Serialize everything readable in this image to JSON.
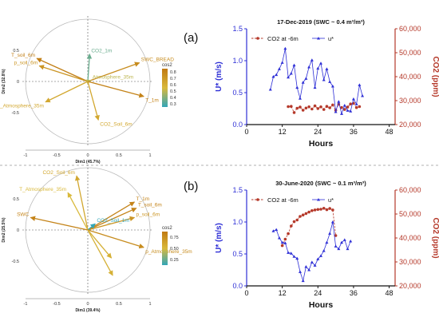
{
  "panel_labels": {
    "a": "(a)",
    "b": "(b)"
  },
  "colorbar_label": "cos2",
  "colors": {
    "co2_series": "#b5392a",
    "ustar_series": "#2e2fd6",
    "left_axis": "#2e2fd6",
    "right_axis": "#b5392a",
    "vector_high": "#c07a12",
    "vector_mid": "#d9b93b",
    "vector_low": "#32a6b8",
    "divider": "#999999"
  },
  "chart_data": [
    {
      "type": "biplot",
      "panel": "a",
      "xlabel": "Dim1 (45.7%)",
      "ylabel": "Dim2 (32.8%)",
      "xticks": [
        "-1",
        "-0.5",
        "0",
        "0.5",
        "1"
      ],
      "yticks": [
        "0.5",
        "0",
        "-0.5"
      ],
      "xlim": [
        -1.1,
        1.1
      ],
      "ylim": [
        -1.1,
        1.1
      ],
      "colorbar": {
        "label": "cos2",
        "ticks": [
          "0.8",
          "0.7",
          "0.6",
          "0.5",
          "0.4",
          "0.3"
        ]
      },
      "vectors": [
        {
          "label": "CO2_1m",
          "x": 0.03,
          "y": 0.44,
          "cos2": 0.3
        },
        {
          "label": "SWC_BREAD",
          "x": 0.83,
          "y": 0.3,
          "cos2": 0.75
        },
        {
          "label": "T_soil_6m",
          "x": -0.82,
          "y": 0.37,
          "cos2": 0.82
        },
        {
          "label": "p_soil_6m",
          "x": -0.78,
          "y": 0.25,
          "cos2": 0.7
        },
        {
          "label": "Atmosphere_35m",
          "x": 0.05,
          "y": 0.02,
          "cos2": 0.45
        },
        {
          "label": "p_Atmosphere_35m",
          "x": -0.68,
          "y": -0.33,
          "cos2": 0.6
        },
        {
          "label": "T_1m",
          "x": 0.9,
          "y": -0.24,
          "cos2": 0.8
        },
        {
          "label": "CO2_Soil_6m",
          "x": 0.17,
          "y": -0.62,
          "cos2": 0.6
        }
      ]
    },
    {
      "type": "line",
      "panel": "a",
      "title": "17-Dec-2019 (SWC ~ 0.4 m³/m³)",
      "xlabel": "Hours",
      "ylabel_left": "U* (m/s)",
      "ylabel_right": "CO2 (ppm)",
      "xlim": [
        0,
        50
      ],
      "xticks": [
        "0",
        "12",
        "24",
        "36",
        "48"
      ],
      "ylim_left": [
        0,
        1.5
      ],
      "yticks_left": [
        "0.0",
        "0.5",
        "1.0",
        "1.5"
      ],
      "ylim_right": [
        20000,
        60000
      ],
      "yticks_right": [
        "20,000",
        "30,000",
        "40,000",
        "50,000",
        "60,000"
      ],
      "legend": [
        "CO2 at -6m",
        "u*"
      ],
      "series": [
        {
          "name": "CO2 at -6m",
          "axis": "right",
          "x": [
            14,
            15,
            16,
            17,
            18,
            19,
            20,
            21,
            22,
            23,
            24,
            25,
            26,
            27,
            28,
            29,
            30,
            31,
            32,
            33,
            34,
            35,
            36,
            37,
            38
          ],
          "y": [
            27500,
            27600,
            25000,
            26800,
            27300,
            26000,
            26900,
            27400,
            26500,
            27800,
            26700,
            27400,
            26300,
            27600,
            27000,
            28200,
            26000,
            28500,
            27100,
            26300,
            27300,
            28600,
            28900,
            27100,
            27500
          ]
        },
        {
          "name": "u*",
          "axis": "left",
          "x": [
            8,
            9,
            10,
            11,
            12,
            13,
            14,
            15,
            16,
            17,
            18,
            19,
            20,
            21,
            22,
            23,
            24,
            25,
            26,
            27,
            28,
            29,
            30,
            31,
            32,
            33,
            34,
            35,
            36,
            37,
            38,
            39
          ],
          "y": [
            0.55,
            0.75,
            0.78,
            0.87,
            0.97,
            1.19,
            0.74,
            0.8,
            0.93,
            0.58,
            0.41,
            0.66,
            0.72,
            0.9,
            1.01,
            0.58,
            0.88,
            0.96,
            0.7,
            0.87,
            0.67,
            0.6,
            0.2,
            0.36,
            0.17,
            0.3,
            0.22,
            0.21,
            0.4,
            0.32,
            0.62,
            0.45
          ]
        }
      ]
    },
    {
      "type": "biplot",
      "panel": "b",
      "xlabel": "Dim1 (39.4%)",
      "ylabel": "Dim2 (25.5%)",
      "xticks": [
        "-1",
        "-0.5",
        "0",
        "0.5",
        "1"
      ],
      "yticks": [
        "0.5",
        "0",
        "-0.5"
      ],
      "xlim": [
        -1.1,
        1.1
      ],
      "ylim": [
        -1.1,
        1.1
      ],
      "colorbar": {
        "label": "cos2",
        "ticks": [
          "0.75",
          "0.50",
          "0.25"
        ]
      },
      "vectors": [
        {
          "label": "CO2_Soil_6m",
          "x": -0.18,
          "y": 0.87,
          "cos2": 0.6
        },
        {
          "label": "T_Atmosphere_35m",
          "x": -0.32,
          "y": 0.6,
          "cos2": 0.5
        },
        {
          "label": "T_1m",
          "x": 0.75,
          "y": 0.45,
          "cos2": 0.8
        },
        {
          "label": "T_soil_6m",
          "x": 0.78,
          "y": 0.35,
          "cos2": 0.8
        },
        {
          "label": "p_soil_6m",
          "x": 0.75,
          "y": 0.2,
          "cos2": 0.7
        },
        {
          "label": "SWC",
          "x": -0.92,
          "y": 0.2,
          "cos2": 0.8
        },
        {
          "label": "CO2_Soil_1m",
          "x": 0.12,
          "y": 0.1,
          "cos2": 0.2
        },
        {
          "label": "p_Atmosphere_35m",
          "x": 0.9,
          "y": -0.28,
          "cos2": 0.75
        },
        {
          "label": "",
          "x": 0.4,
          "y": -0.73,
          "cos2": 0.55
        },
        {
          "label": "",
          "x": 0.38,
          "y": -0.45,
          "cos2": 0.55
        }
      ]
    },
    {
      "type": "line",
      "panel": "b",
      "title": "30-June-2020 (SWC ~ 0.1 m³/m³)",
      "xlabel": "Hours",
      "ylabel_left": "U* (m/s)",
      "ylabel_right": "CO2 (ppm)",
      "xlim": [
        0,
        50
      ],
      "xticks": [
        "0",
        "12",
        "24",
        "36",
        "48"
      ],
      "ylim_left": [
        0,
        1.5
      ],
      "yticks_left": [
        "0.0",
        "0.5",
        "1.0",
        "1.5"
      ],
      "ylim_right": [
        20000,
        60000
      ],
      "yticks_right": [
        "20,000",
        "30,000",
        "40,000",
        "50,000",
        "60,000"
      ],
      "legend": [
        "CO2 at -6m",
        "u*"
      ],
      "series": [
        {
          "name": "CO2 at -6m",
          "axis": "right",
          "x": [
            12,
            13,
            14,
            15,
            16,
            17,
            18,
            19,
            20,
            21,
            22,
            23,
            24,
            25,
            26,
            27,
            28,
            29,
            30
          ],
          "y": [
            36800,
            39500,
            41800,
            45000,
            46800,
            47500,
            49000,
            49600,
            50200,
            50800,
            51400,
            51700,
            51900,
            52000,
            52400,
            51800,
            52300,
            51700,
            41000
          ]
        },
        {
          "name": "u*",
          "axis": "left",
          "x": [
            9,
            10,
            11,
            12,
            13,
            14,
            15,
            16,
            17,
            18,
            19,
            20,
            21,
            22,
            23,
            24,
            25,
            26,
            27,
            28,
            29,
            30,
            31,
            32,
            33,
            34,
            35
          ],
          "y": [
            0.86,
            0.88,
            0.75,
            0.68,
            0.67,
            0.52,
            0.51,
            0.46,
            0.43,
            0.22,
            0.08,
            0.3,
            0.25,
            0.37,
            0.32,
            0.42,
            0.47,
            0.55,
            0.68,
            0.82,
            1.0,
            0.62,
            0.58,
            0.68,
            0.72,
            0.58,
            0.7
          ]
        }
      ]
    }
  ]
}
